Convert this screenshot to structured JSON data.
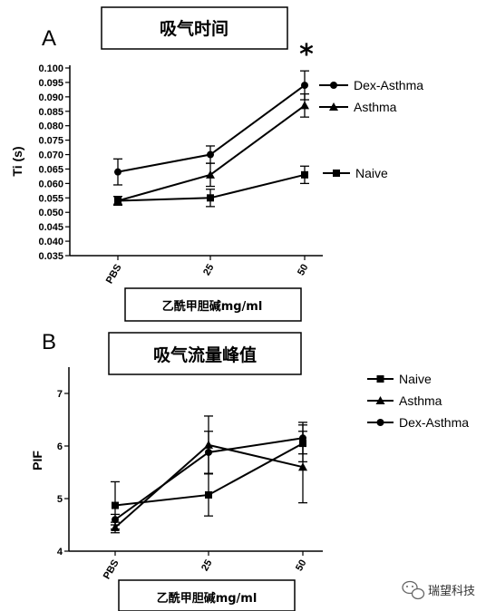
{
  "chart_data": [
    {
      "type": "line",
      "panel": "A",
      "title": "吸气时间",
      "xlabel": "乙酰甲胆碱mg/ml",
      "ylabel": "Ti (s)",
      "categories": [
        "PBS",
        "25",
        "50"
      ],
      "ylim": [
        0.035,
        0.1
      ],
      "yticks": [
        "0.035",
        "0.040",
        "0.045",
        "0.050",
        "0.055",
        "0.060",
        "0.065",
        "0.070",
        "0.075",
        "0.080",
        "0.085",
        "0.090",
        "0.095",
        "0.100"
      ],
      "annotation": "*",
      "legend_position": "right",
      "series": [
        {
          "name": "Dex-Asthma",
          "marker": "circle",
          "values": [
            0.064,
            0.07,
            0.094
          ],
          "errors": [
            0.0045,
            0.003,
            0.005
          ]
        },
        {
          "name": "Asthma",
          "marker": "triangle",
          "values": [
            0.054,
            0.063,
            0.087
          ],
          "errors": [
            0.0015,
            0.004,
            0.004
          ]
        },
        {
          "name": "Naive",
          "marker": "square",
          "values": [
            0.054,
            0.055,
            0.063
          ],
          "errors": [
            0.0015,
            0.003,
            0.003
          ]
        }
      ]
    },
    {
      "type": "line",
      "panel": "B",
      "title": "吸气流量峰值",
      "xlabel": "乙酰甲胆碱mg/ml",
      "ylabel": "PIF",
      "categories": [
        "PBS",
        "25",
        "50"
      ],
      "ylim": [
        4,
        7.5
      ],
      "yticks": [
        "4",
        "5",
        "6",
        "7"
      ],
      "legend_position": "right",
      "series": [
        {
          "name": "Naive",
          "marker": "square",
          "values": [
            4.87,
            5.07,
            6.05
          ],
          "errors": [
            0.45,
            0.4,
            0.35
          ]
        },
        {
          "name": "Asthma",
          "marker": "triangle",
          "values": [
            4.45,
            6.02,
            5.6
          ],
          "errors": [
            0.1,
            0.55,
            0.68
          ]
        },
        {
          "name": "Dex-Asthma",
          "marker": "circle",
          "values": [
            4.6,
            5.88,
            6.15
          ],
          "errors": [
            0.1,
            0.4,
            0.3
          ]
        }
      ]
    }
  ],
  "watermark": {
    "text": "瑞望科技",
    "icon": "wechat-icon"
  }
}
